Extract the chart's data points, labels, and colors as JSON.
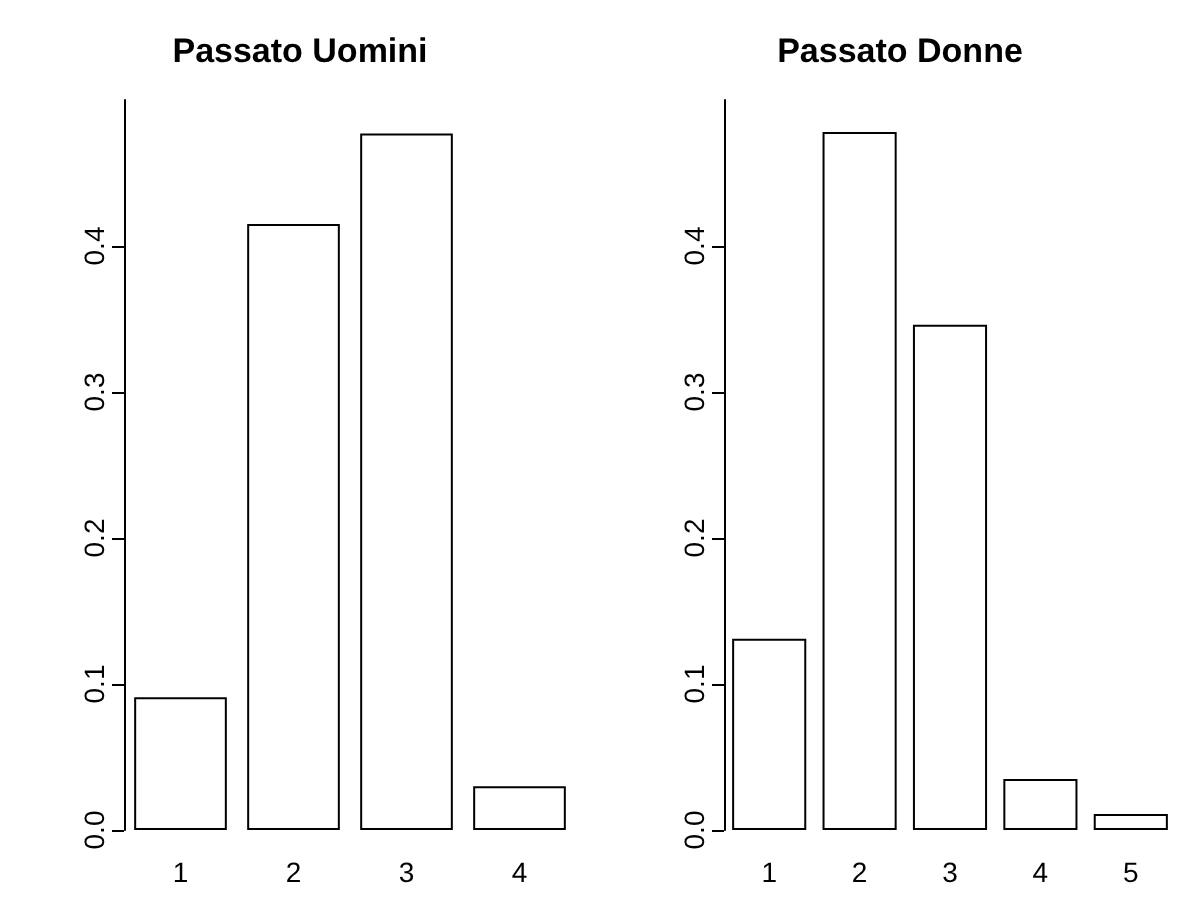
{
  "chart_data": [
    {
      "type": "bar",
      "title": "Passato Uomini",
      "categories": [
        "1",
        "2",
        "3",
        "4"
      ],
      "values": [
        0.091,
        0.415,
        0.477,
        0.03
      ],
      "color": "#ffffff",
      "ylim": [
        0,
        0.5
      ],
      "yticks": [
        {
          "value": 0,
          "label": "0.0"
        },
        0.1,
        0.2,
        0.3,
        0.4
      ],
      "grid": false
    },
    {
      "type": "bar",
      "title": "Passato Donne",
      "categories": [
        "1",
        "2",
        "3",
        "4",
        "5"
      ],
      "values": [
        0.131,
        0.478,
        0.346,
        0.035,
        0.011
      ],
      "color": "#ffffff",
      "ylim": [
        0,
        0.5
      ],
      "yticks": [
        {
          "value": 0,
          "label": "0.0"
        },
        0.1,
        0.2,
        0.3,
        0.4
      ],
      "grid": false
    }
  ]
}
